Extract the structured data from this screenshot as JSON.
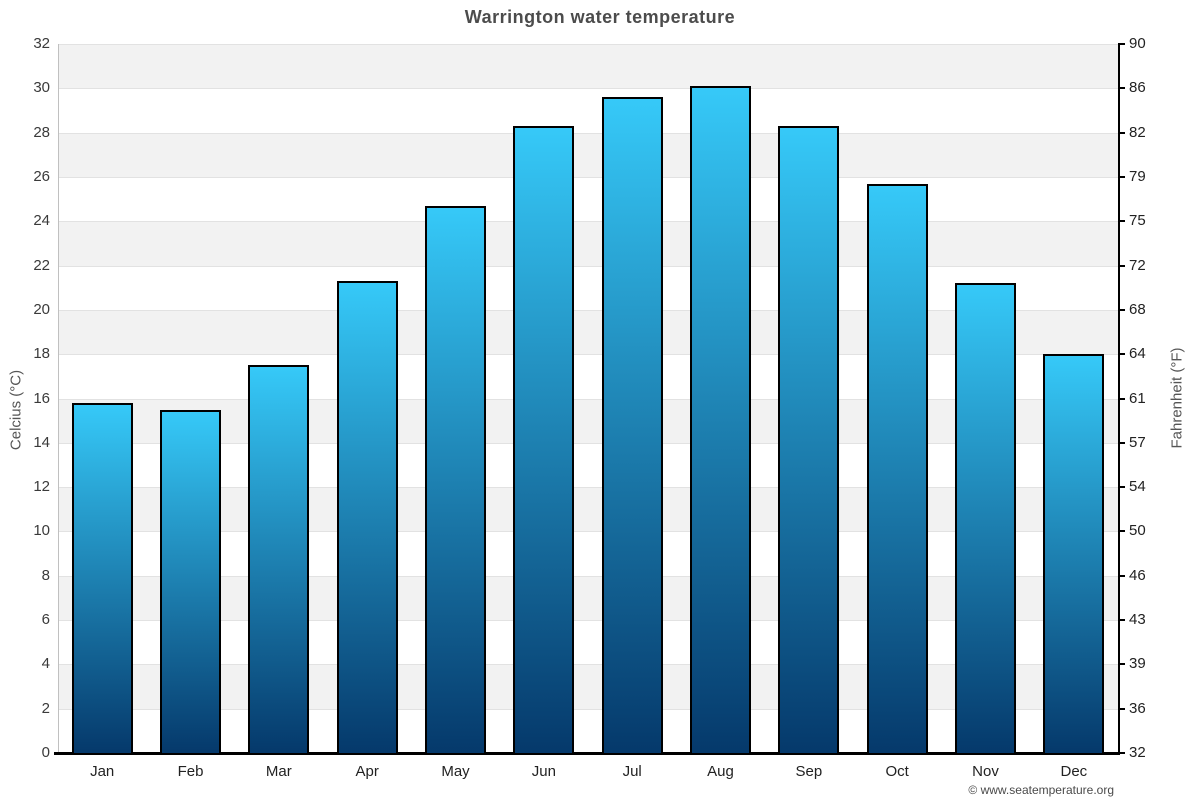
{
  "chart_data": {
    "type": "bar",
    "title": "Warrington water temperature",
    "categories": [
      "Jan",
      "Feb",
      "Mar",
      "Apr",
      "May",
      "Jun",
      "Jul",
      "Aug",
      "Sep",
      "Oct",
      "Nov",
      "Dec"
    ],
    "values": [
      15.8,
      15.5,
      17.5,
      21.3,
      24.7,
      28.3,
      29.6,
      30.1,
      28.3,
      25.7,
      21.2,
      18.0
    ],
    "series_name": "Water temperature",
    "xlabel": "",
    "ylabel_left": "Celcius (°C)",
    "ylabel_right": "Fahrenheit (°F)",
    "ylim": [
      0,
      32
    ],
    "celsius_ticks": [
      0,
      2,
      4,
      6,
      8,
      10,
      12,
      14,
      16,
      18,
      20,
      22,
      24,
      26,
      28,
      30,
      32
    ],
    "fahrenheit_tick_labels": [
      "32",
      "36",
      "39",
      "43",
      "46",
      "50",
      "54",
      "57",
      "61",
      "64",
      "68",
      "72",
      "75",
      "79",
      "82",
      "86",
      "90"
    ],
    "grid": "horizontal-bands",
    "legend": "none",
    "colors": {
      "bar_gradient_top": "#36c9f8",
      "bar_gradient_bottom": "#05396b",
      "bar_border": "#000000",
      "band_gray": "#f2f2f2",
      "gridline": "#e2e2e2",
      "title_text": "#4c4c4c"
    }
  },
  "footer": {
    "credit": "© www.seatemperature.org"
  }
}
